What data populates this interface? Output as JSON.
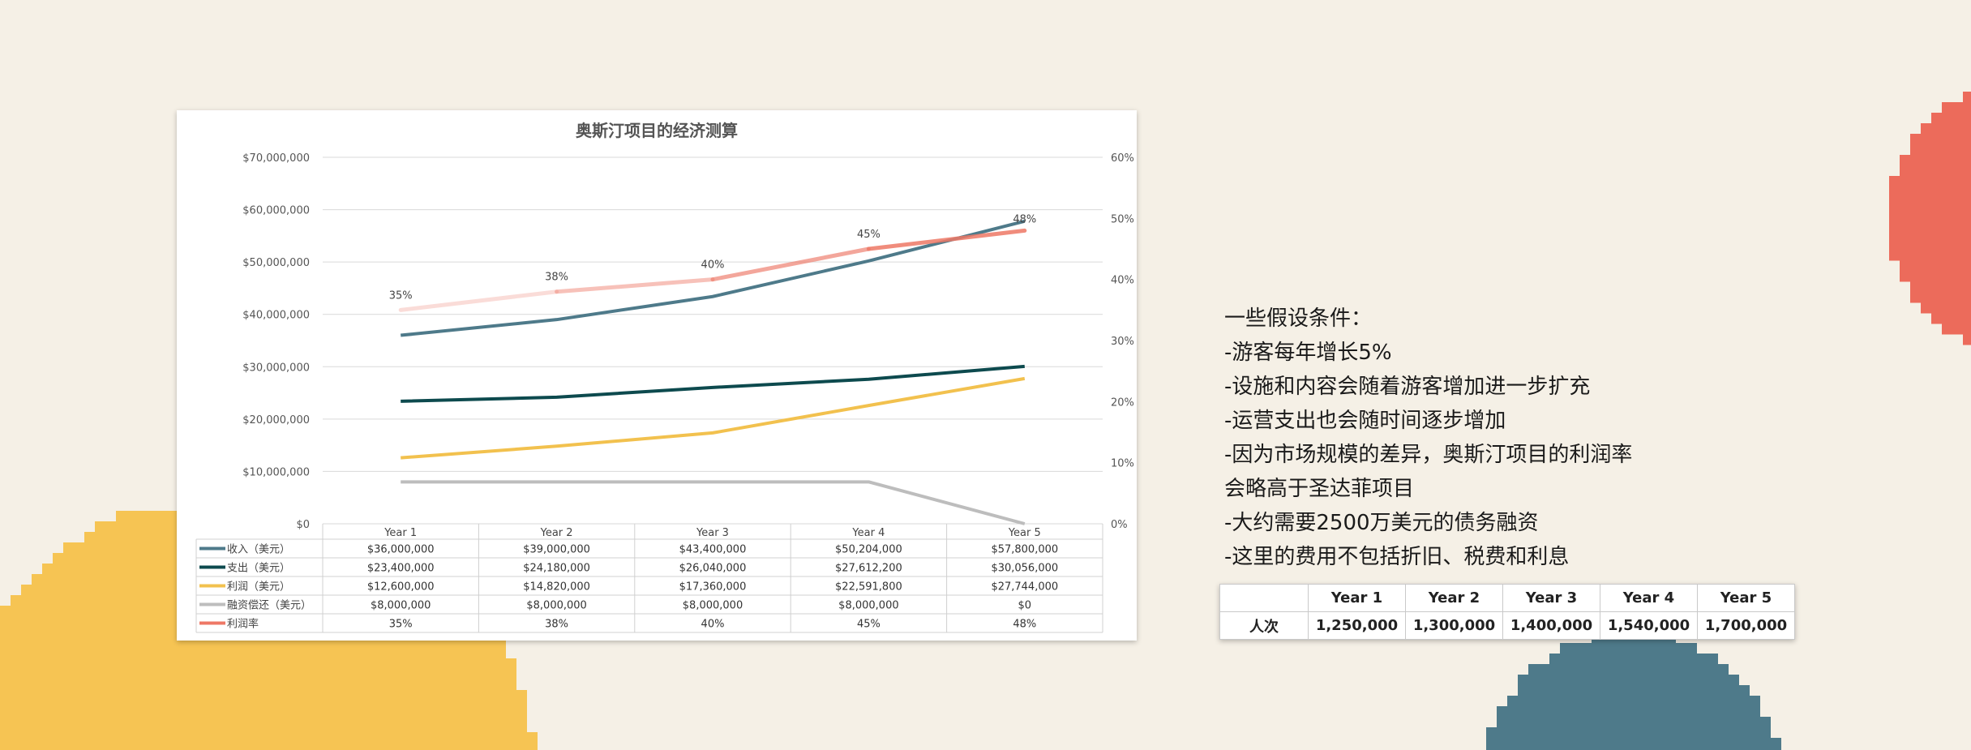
{
  "colors": {
    "background": "#f5f0e6",
    "revenue": "#4e7a8a",
    "expense": "#0d4a4e",
    "profit": "#f2c14e",
    "debt": "#bdbdbd",
    "margin": "#ee7866",
    "deco_yellow": "#f6c453",
    "deco_blue": "#4e7a8a",
    "deco_red": "#ec6b5b"
  },
  "chart_data": {
    "type": "line",
    "title": "奥斯汀项目的经济测算",
    "categories": [
      "Year 1",
      "Year 2",
      "Year 3",
      "Year 4",
      "Year 5"
    ],
    "ylim": [
      0,
      70000000
    ],
    "y2lim": [
      0,
      0.6
    ],
    "y_ticks": [
      "$0",
      "$10,000,000",
      "$20,000,000",
      "$30,000,000",
      "$40,000,000",
      "$50,000,000",
      "$60,000,000",
      "$70,000,000"
    ],
    "y2_ticks": [
      "0%",
      "10%",
      "20%",
      "30%",
      "40%",
      "50%",
      "60%"
    ],
    "grid": true,
    "legend": "data-table",
    "series": [
      {
        "name": "收入（美元）",
        "axis": "left",
        "color": "#4e7a8a",
        "values": [
          36000000,
          39000000,
          43400000,
          50204000,
          57800000
        ],
        "labels": [
          "$36,000,000",
          "$39,000,000",
          "$43,400,000",
          "$50,204,000",
          "$57,800,000"
        ]
      },
      {
        "name": "支出（美元）",
        "axis": "left",
        "color": "#0d4a4e",
        "values": [
          23400000,
          24180000,
          26040000,
          27612200,
          30056000
        ],
        "labels": [
          "$23,400,000",
          "$24,180,000",
          "$26,040,000",
          "$27,612,200",
          "$30,056,000"
        ]
      },
      {
        "name": "利润（美元）",
        "axis": "left",
        "color": "#f2c14e",
        "values": [
          12600000,
          14820000,
          17360000,
          22591800,
          27744000
        ],
        "labels": [
          "$12,600,000",
          "$14,820,000",
          "$17,360,000",
          "$22,591,800",
          "$27,744,000"
        ]
      },
      {
        "name": "融资偿还（美元）",
        "axis": "left",
        "color": "#bdbdbd",
        "values": [
          8000000,
          8000000,
          8000000,
          8000000,
          0
        ],
        "labels": [
          "$8,000,000",
          "$8,000,000",
          "$8,000,000",
          "$8,000,000",
          "$0"
        ]
      },
      {
        "name": "利润率",
        "axis": "right",
        "color": "#ee7866",
        "values": [
          0.35,
          0.38,
          0.4,
          0.45,
          0.48
        ],
        "labels": [
          "35%",
          "38%",
          "40%",
          "45%",
          "48%"
        ]
      }
    ]
  },
  "notes": [
    "一些假设条件：",
    "-游客每年增长5%",
    "-设施和内容会随着游客增加进一步扩充",
    "-运营支出也会随时间逐步增加",
    "-因为市场规模的差异，奥斯汀项目的利润率",
    "会略高于圣达菲项目",
    "-大约需要2500万美元的债务融资",
    "-这里的费用不包括折旧、税费和利息"
  ],
  "visitors_table": {
    "headers": [
      "",
      "Year 1",
      "Year 2",
      "Year 3",
      "Year 4",
      "Year 5"
    ],
    "row_label": "人次",
    "values": [
      "1,250,000",
      "1,300,000",
      "1,400,000",
      "1,540,000",
      "1,700,000"
    ]
  }
}
